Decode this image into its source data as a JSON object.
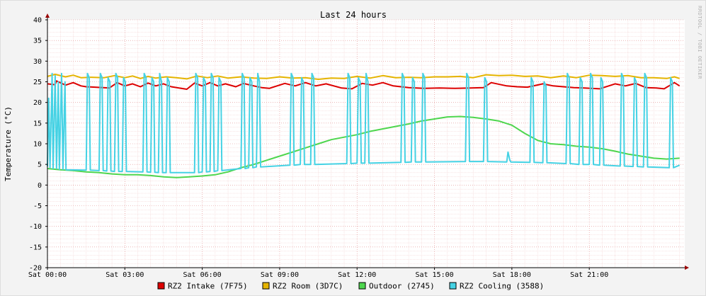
{
  "chart_data": {
    "type": "line",
    "title": "Last 24 hours",
    "ylabel": "Temperature (°C)",
    "xlabel": "",
    "watermark": "RRDTOOL / TOBI OETIKER",
    "ylim": [
      -20,
      40
    ],
    "xlim": [
      0,
      24.7
    ],
    "y_ticks": [
      40,
      35,
      30,
      25,
      20,
      15,
      10,
      5,
      0,
      -5,
      -10,
      -15,
      -20
    ],
    "x_ticks": [
      {
        "x": 0,
        "label": "Sat 00:00"
      },
      {
        "x": 3,
        "label": "Sat 03:00"
      },
      {
        "x": 6,
        "label": "Sat 06:00"
      },
      {
        "x": 9,
        "label": "Sat 09:00"
      },
      {
        "x": 12,
        "label": "Sat 12:00"
      },
      {
        "x": 15,
        "label": "Sat 15:00"
      },
      {
        "x": 18,
        "label": "Sat 18:00"
      },
      {
        "x": 21,
        "label": "Sat 21:00"
      }
    ],
    "grid": true,
    "legend_position": "bottom",
    "series": [
      {
        "name": "RZ2 Intake (7F75)",
        "color": "#dd0000",
        "x": [
          0,
          0.3,
          0.35,
          0.7,
          1.0,
          1.3,
          1.5,
          2.4,
          2.7,
          3.0,
          3.3,
          3.6,
          3.9,
          4.2,
          4.5,
          4.8,
          5.4,
          5.7,
          6.0,
          6.3,
          6.6,
          6.9,
          7.3,
          7.6,
          8.0,
          8.3,
          8.6,
          9.2,
          9.6,
          10.0,
          10.4,
          10.8,
          11.4,
          11.8,
          12.2,
          12.6,
          13.0,
          13.4,
          14.0,
          14.6,
          15.2,
          15.8,
          16.4,
          16.9,
          17.2,
          17.8,
          18.2,
          18.6,
          19.2,
          19.6,
          20.0,
          20.4,
          20.8,
          21.4,
          22.0,
          22.4,
          22.8,
          23.2,
          23.6,
          23.9,
          24.3,
          24.5
        ],
        "y": [
          24.5,
          24.3,
          25.2,
          24.2,
          24.8,
          24.0,
          23.8,
          23.5,
          24.8,
          24.0,
          24.5,
          23.8,
          24.7,
          24.0,
          24.5,
          23.8,
          23.2,
          24.7,
          24.0,
          24.8,
          24.0,
          24.5,
          23.8,
          24.6,
          24.0,
          23.6,
          23.4,
          24.6,
          24.0,
          24.8,
          24.0,
          24.5,
          23.5,
          23.3,
          24.6,
          24.2,
          24.8,
          24.0,
          23.6,
          23.4,
          23.5,
          23.4,
          23.5,
          23.6,
          24.8,
          24.0,
          23.8,
          23.7,
          24.5,
          24.0,
          23.8,
          23.6,
          23.5,
          23.3,
          24.5,
          24.0,
          24.6,
          23.6,
          23.5,
          23.3,
          24.8,
          24.0
        ]
      },
      {
        "name": "RZ2 Room (3D7C)",
        "color": "#e5b400",
        "x": [
          0,
          0.3,
          0.7,
          1.0,
          1.3,
          1.7,
          2.2,
          2.6,
          3.0,
          3.3,
          3.6,
          3.9,
          4.2,
          4.6,
          5.0,
          5.4,
          5.8,
          6.2,
          6.6,
          7.0,
          7.5,
          8.0,
          8.5,
          9.0,
          9.5,
          10.0,
          10.5,
          11.0,
          11.5,
          12.0,
          12.5,
          13.0,
          13.5,
          14.0,
          14.5,
          15.0,
          15.5,
          16.0,
          16.5,
          17.0,
          17.5,
          18.0,
          18.5,
          19.0,
          19.5,
          20.0,
          20.5,
          21.0,
          21.5,
          22.0,
          22.5,
          23.0,
          23.5,
          24.0,
          24.3,
          24.5
        ],
        "y": [
          26.3,
          26.8,
          26.2,
          26.6,
          26.0,
          26.1,
          26.0,
          26.5,
          26.0,
          26.4,
          25.8,
          26.3,
          25.9,
          26.2,
          26.0,
          25.7,
          26.4,
          26.0,
          26.4,
          25.9,
          26.2,
          25.9,
          25.8,
          26.2,
          25.9,
          26.0,
          25.6,
          25.9,
          25.8,
          26.3,
          25.9,
          26.5,
          26.0,
          26.1,
          26.0,
          26.2,
          26.2,
          26.3,
          26.0,
          26.7,
          26.5,
          26.6,
          26.3,
          26.4,
          26.0,
          26.4,
          26.0,
          26.6,
          26.5,
          26.3,
          26.5,
          26.0,
          26.0,
          25.8,
          26.2,
          25.8
        ]
      },
      {
        "name": "Outdoor (2745)",
        "color": "#4ed64e",
        "x": [
          0,
          0.5,
          1.0,
          1.5,
          2.0,
          2.5,
          3.0,
          3.5,
          4.0,
          4.5,
          5.0,
          5.5,
          6.0,
          6.5,
          7.0,
          7.5,
          8.0,
          8.5,
          9.0,
          9.5,
          10.0,
          10.5,
          11.0,
          11.5,
          12.0,
          12.5,
          13.0,
          13.5,
          14.0,
          14.5,
          15.0,
          15.5,
          16.0,
          16.5,
          17.0,
          17.5,
          18.0,
          18.5,
          19.0,
          19.5,
          20.0,
          20.5,
          21.0,
          21.5,
          22.0,
          22.5,
          23.0,
          23.5,
          24.0,
          24.5
        ],
        "y": [
          4.0,
          3.7,
          3.5,
          3.2,
          3.0,
          2.7,
          2.5,
          2.5,
          2.3,
          2.0,
          1.8,
          2.0,
          2.2,
          2.5,
          3.2,
          4.2,
          5.0,
          6.0,
          7.0,
          8.0,
          9.0,
          10.0,
          11.0,
          11.6,
          12.2,
          13.0,
          13.6,
          14.2,
          14.8,
          15.5,
          16.0,
          16.5,
          16.6,
          16.4,
          16.0,
          15.5,
          14.5,
          12.5,
          10.8,
          10.0,
          9.8,
          9.4,
          9.2,
          8.8,
          8.2,
          7.5,
          7.0,
          6.5,
          6.3,
          6.5
        ]
      },
      {
        "name": "RZ2 Cooling (3588)",
        "color": "#45d2e4",
        "x": [
          0,
          0.05,
          0.1,
          0.18,
          0.22,
          0.3,
          0.35,
          0.42,
          0.46,
          0.55,
          0.6,
          0.68,
          0.72,
          1.5,
          1.55,
          1.62,
          1.66,
          2.0,
          2.05,
          2.12,
          2.16,
          2.3,
          2.35,
          2.42,
          2.46,
          2.6,
          2.65,
          2.72,
          2.76,
          2.9,
          2.95,
          3.02,
          3.06,
          3.7,
          3.75,
          3.82,
          3.86,
          4.0,
          4.05,
          4.12,
          4.16,
          4.3,
          4.35,
          4.42,
          4.46,
          4.6,
          4.65,
          4.72,
          4.76,
          5.7,
          5.75,
          5.82,
          5.86,
          6.0,
          6.05,
          6.12,
          6.16,
          6.3,
          6.35,
          6.42,
          6.46,
          6.6,
          6.65,
          6.72,
          6.76,
          7.5,
          7.55,
          7.62,
          7.66,
          7.8,
          7.85,
          7.92,
          7.96,
          8.1,
          8.15,
          8.22,
          8.26,
          9.4,
          9.45,
          9.52,
          9.56,
          9.8,
          9.85,
          9.92,
          9.96,
          10.2,
          10.25,
          10.32,
          10.36,
          11.6,
          11.65,
          11.72,
          11.76,
          12.0,
          12.05,
          12.12,
          12.16,
          12.3,
          12.35,
          12.42,
          12.46,
          13.7,
          13.75,
          13.82,
          13.86,
          14.1,
          14.15,
          14.22,
          14.26,
          14.5,
          14.55,
          14.62,
          14.66,
          16.2,
          16.25,
          16.32,
          16.36,
          16.9,
          16.95,
          17.02,
          17.06,
          17.8,
          17.85,
          17.92,
          17.96,
          18.7,
          18.75,
          18.82,
          18.86,
          19.2,
          19.25,
          19.32,
          19.36,
          20.1,
          20.15,
          20.22,
          20.26,
          20.6,
          20.65,
          20.72,
          20.76,
          21.0,
          21.05,
          21.12,
          21.16,
          21.4,
          21.45,
          21.52,
          21.56,
          22.2,
          22.25,
          22.32,
          22.36,
          22.7,
          22.75,
          22.82,
          22.86,
          23.1,
          23.15,
          23.22,
          23.26,
          24.1,
          24.15,
          24.22,
          24.26,
          24.5
        ],
        "y": [
          4.5,
          21,
          4.2,
          27,
          4.0,
          26.5,
          4.0,
          25,
          3.8,
          27,
          3.8,
          25,
          3.7,
          3.6,
          27,
          26,
          3.6,
          3.5,
          27,
          26,
          3.5,
          3.4,
          26,
          25,
          3.4,
          3.3,
          27,
          26,
          3.3,
          3.3,
          26,
          25,
          3.3,
          3.2,
          27,
          26,
          3.2,
          3.1,
          26,
          25,
          3.1,
          3.0,
          27,
          25,
          3.0,
          3.0,
          26,
          25,
          3.0,
          3.0,
          27,
          26,
          3.0,
          3.2,
          26,
          25,
          3.2,
          3.3,
          27,
          26,
          3.3,
          3.5,
          26,
          25,
          3.5,
          4.0,
          27,
          26,
          4.0,
          4.2,
          26,
          25,
          4.2,
          4.4,
          27,
          25,
          4.4,
          4.8,
          27,
          26,
          4.8,
          5.0,
          26,
          25,
          5.0,
          5.0,
          27,
          26,
          5.0,
          5.2,
          27,
          26,
          5.2,
          5.3,
          26,
          25,
          5.3,
          5.3,
          27,
          25,
          5.3,
          5.5,
          27,
          26,
          5.5,
          5.6,
          26,
          25,
          5.6,
          5.6,
          27,
          26,
          5.6,
          5.7,
          27,
          26,
          5.7,
          5.7,
          26,
          25,
          5.7,
          5.6,
          8,
          6,
          5.6,
          5.5,
          26,
          25,
          5.5,
          5.4,
          25,
          24,
          5.4,
          5.2,
          27,
          26,
          5.2,
          5.0,
          26,
          25,
          5.0,
          5.0,
          27,
          26,
          5.0,
          4.8,
          26,
          25,
          4.8,
          4.6,
          27,
          26,
          4.6,
          4.5,
          26,
          25,
          4.5,
          4.4,
          27,
          26,
          4.4,
          4.2,
          26,
          25,
          4.2,
          4.8
        ]
      }
    ]
  }
}
